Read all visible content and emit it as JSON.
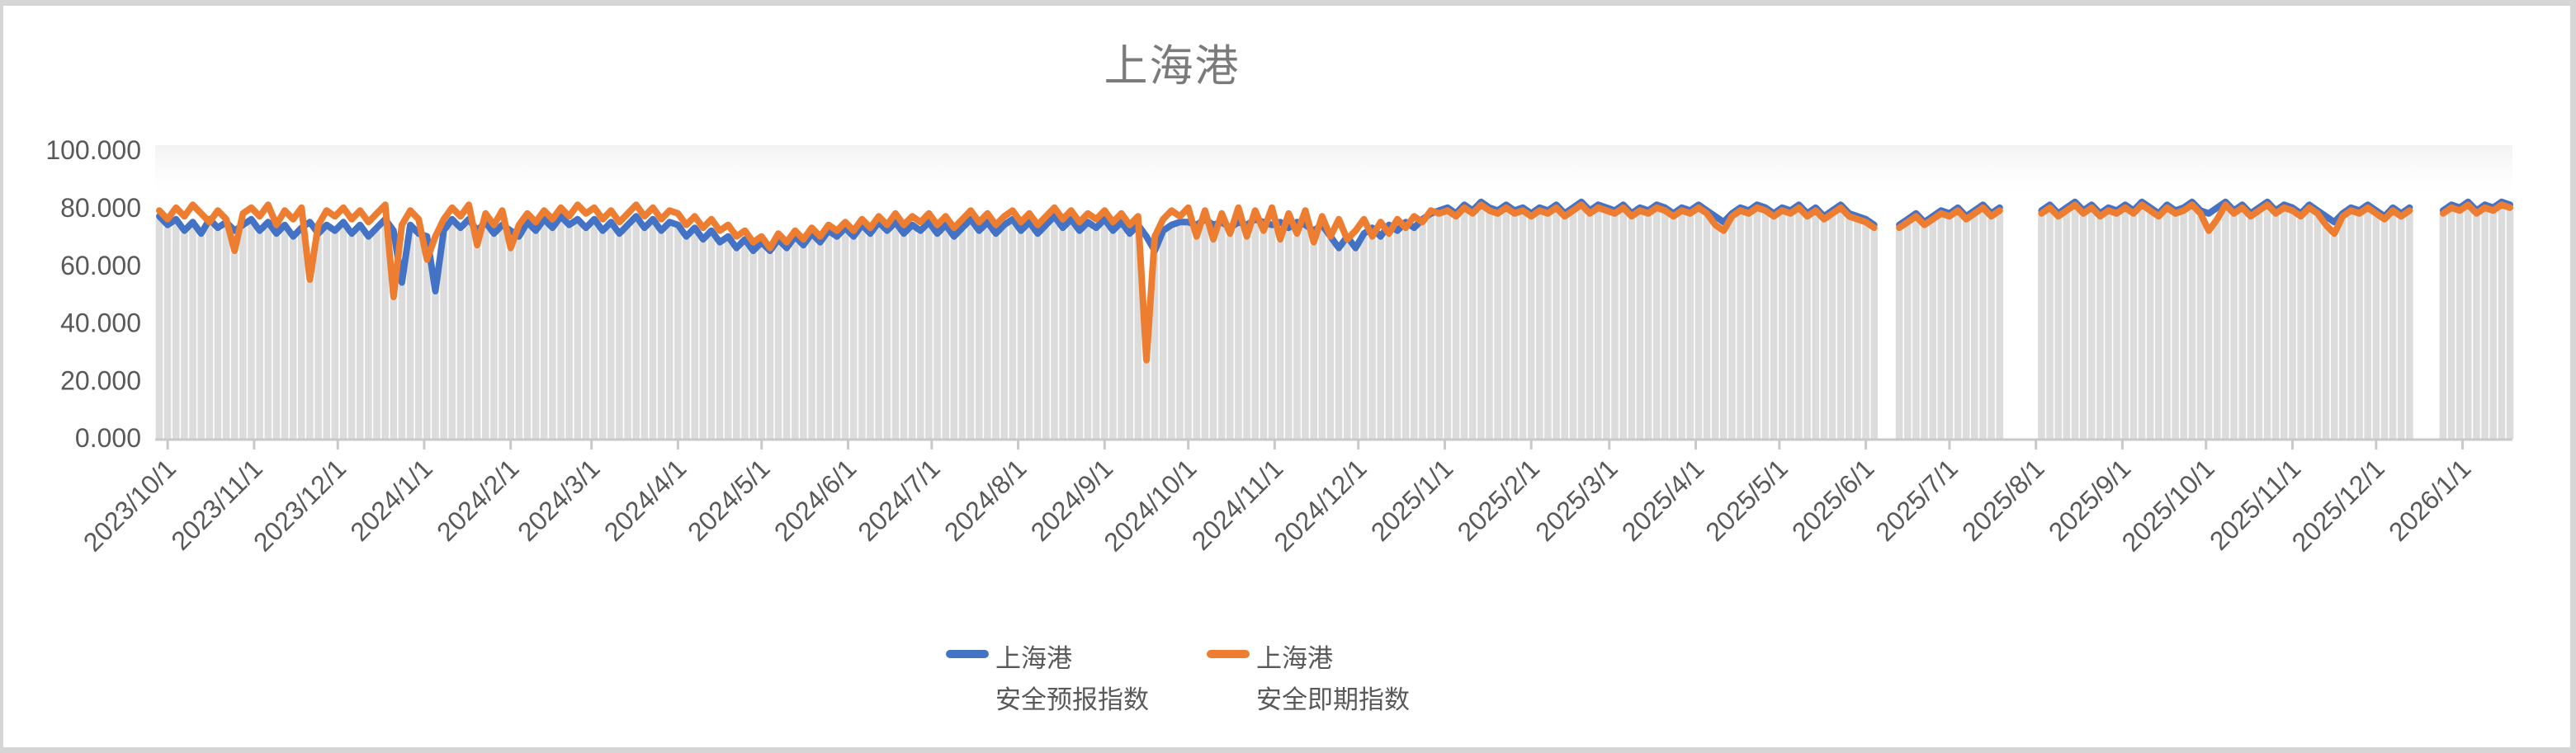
{
  "window": {
    "frame_color": "#d6d6d6",
    "background": "#ffffff"
  },
  "chart_title": "上海港",
  "legend": {
    "items": [
      {
        "line1": "上海港",
        "line2": "安全预报指数",
        "color": "#4472C4"
      },
      {
        "line1": "上海港",
        "line2": "安全即期指数",
        "color": "#ED7D31"
      }
    ]
  },
  "y_axis": {
    "tick_labels": [
      "0.000",
      "20.000",
      "40.000",
      "60.000",
      "80.000",
      "100.000"
    ],
    "tick_values": [
      0,
      20,
      40,
      60,
      80,
      100
    ]
  },
  "x_axis": {
    "tick_labels": [
      "2023/10/1",
      "2023/11/1",
      "2023/12/1",
      "2024/1/1",
      "2024/2/1",
      "2024/3/1",
      "2024/4/1",
      "2024/5/1",
      "2024/6/1",
      "2024/7/1",
      "2024/8/1",
      "2024/9/1",
      "2024/10/1",
      "2024/11/1",
      "2024/12/1",
      "2025/1/1",
      "2025/2/1",
      "2025/3/1",
      "2025/4/1",
      "2025/5/1",
      "2025/6/1",
      "2025/7/1",
      "2025/8/1",
      "2025/9/1",
      "2025/10/1",
      "2025/11/1",
      "2025/12/1",
      "2026/1/1"
    ]
  },
  "chart_data": {
    "type": "line",
    "title": "上海港",
    "xlabel": "",
    "ylabel": "",
    "x_start_date": "2023/9/28",
    "x_end_date": "2026/1/18",
    "sample_interval_days": 3,
    "ylim": [
      0,
      100
    ],
    "grid": false,
    "legend_position": "bottom",
    "background_columns_color": "#dcdcdc",
    "axis_color": "#c9c9c9",
    "label_color": "#595959",
    "notable_events": [
      "orange dip ~65 on 2023/10/25",
      "orange dip ~55 on 2023/11/22",
      "orange dip ~49 on 2023/12/21, blue dip ~54 on 2023/12/24",
      "blue dip ~51 on 2024/1/4",
      "both sag to ~65-70 late 2024/4 through 2024/5",
      "orange spike down to ~27 on 2024/9/17, blue dip ~65 after",
      "2024/10-12: blue flat ~75 while orange oscillates 68-80",
      "2025: both tight 77-82",
      "orange dip ~72 on 2025/4/11 and 2025/10/3, ~71 on 2025/11/15"
    ],
    "gaps_no_data": [
      "2025/6/7–2025/6/11",
      "2025/7/22–2025/7/31",
      "2025/12/16–2025/12/24"
    ],
    "series": [
      {
        "name": "上海港 安全预报指数",
        "color": "#4472C4",
        "values": [
          77,
          74,
          76,
          72,
          75,
          71,
          76,
          73,
          75,
          72,
          74,
          76,
          72,
          75,
          71,
          74,
          70,
          73,
          75,
          71,
          74,
          72,
          75,
          71,
          74,
          70,
          73,
          76,
          72,
          54,
          74,
          71,
          70,
          51,
          72,
          76,
          73,
          76,
          72,
          75,
          71,
          74,
          72,
          70,
          75,
          72,
          76,
          73,
          77,
          74,
          76,
          73,
          76,
          72,
          75,
          71,
          74,
          77,
          73,
          76,
          72,
          75,
          74,
          70,
          73,
          69,
          72,
          68,
          70,
          66,
          69,
          65,
          68,
          65,
          69,
          66,
          70,
          67,
          71,
          68,
          72,
          70,
          73,
          70,
          74,
          71,
          75,
          72,
          75,
          71,
          74,
          72,
          75,
          71,
          74,
          70,
          73,
          76,
          72,
          75,
          71,
          74,
          76,
          72,
          75,
          71,
          74,
          77,
          73,
          76,
          72,
          75,
          73,
          76,
          72,
          75,
          71,
          74,
          70,
          65,
          72,
          74,
          75,
          75,
          74,
          76,
          74,
          75,
          73,
          75,
          74,
          76,
          75,
          74,
          75,
          73,
          75,
          74,
          72,
          74,
          70,
          66,
          70,
          66,
          71,
          73,
          70,
          74,
          72,
          75,
          73,
          76,
          78,
          79,
          80,
          78,
          81,
          79,
          82,
          80,
          79,
          81,
          79,
          80,
          78,
          80,
          79,
          81,
          78,
          80,
          82,
          79,
          81,
          80,
          79,
          81,
          78,
          80,
          79,
          81,
          80,
          78,
          80,
          79,
          81,
          79,
          77,
          75,
          78,
          80,
          79,
          81,
          80,
          78,
          80,
          79,
          81,
          78,
          80,
          77,
          79,
          81,
          78,
          77,
          76,
          74,
          null,
          null,
          74,
          76,
          78,
          75,
          77,
          79,
          78,
          80,
          77,
          79,
          81,
          78,
          80,
          null,
          null,
          null,
          null,
          79,
          81,
          78,
          80,
          82,
          79,
          81,
          78,
          80,
          79,
          81,
          79,
          82,
          80,
          78,
          81,
          79,
          80,
          82,
          79,
          78,
          80,
          82,
          79,
          81,
          78,
          80,
          82,
          79,
          81,
          80,
          78,
          81,
          79,
          77,
          75,
          78,
          80,
          79,
          81,
          79,
          77,
          80,
          78,
          80,
          null,
          null,
          null,
          79,
          81,
          80,
          82,
          79,
          81,
          80,
          82,
          81
        ]
      },
      {
        "name": "上海港 安全即期指数",
        "color": "#ED7D31",
        "values": [
          79,
          76,
          80,
          77,
          81,
          78,
          75,
          79,
          76,
          65,
          78,
          80,
          77,
          81,
          74,
          79,
          76,
          80,
          55,
          74,
          79,
          77,
          80,
          76,
          79,
          75,
          78,
          81,
          49,
          74,
          79,
          76,
          62,
          70,
          76,
          80,
          77,
          81,
          67,
          78,
          74,
          79,
          66,
          74,
          78,
          75,
          79,
          76,
          80,
          77,
          81,
          78,
          80,
          76,
          79,
          75,
          78,
          81,
          77,
          80,
          76,
          79,
          78,
          74,
          77,
          73,
          76,
          72,
          74,
          70,
          72,
          68,
          70,
          66,
          71,
          68,
          72,
          69,
          73,
          70,
          74,
          72,
          75,
          72,
          76,
          73,
          77,
          74,
          78,
          74,
          77,
          75,
          78,
          74,
          77,
          73,
          76,
          79,
          75,
          78,
          74,
          77,
          79,
          75,
          78,
          74,
          77,
          80,
          76,
          79,
          75,
          78,
          76,
          79,
          75,
          78,
          74,
          77,
          27,
          70,
          76,
          79,
          77,
          80,
          70,
          79,
          69,
          78,
          71,
          80,
          70,
          79,
          72,
          80,
          69,
          78,
          71,
          79,
          68,
          77,
          70,
          76,
          69,
          72,
          76,
          70,
          75,
          71,
          76,
          73,
          77,
          75,
          79,
          78,
          79,
          77,
          80,
          78,
          81,
          79,
          78,
          80,
          78,
          79,
          77,
          79,
          78,
          80,
          77,
          79,
          81,
          78,
          80,
          79,
          78,
          80,
          77,
          79,
          78,
          80,
          79,
          77,
          79,
          78,
          80,
          78,
          74,
          72,
          77,
          79,
          78,
          80,
          79,
          77,
          79,
          78,
          80,
          77,
          79,
          76,
          78,
          80,
          77,
          76,
          75,
          73,
          null,
          null,
          73,
          75,
          77,
          74,
          76,
          78,
          77,
          79,
          76,
          78,
          80,
          77,
          79,
          null,
          null,
          null,
          null,
          78,
          80,
          77,
          79,
          81,
          78,
          80,
          77,
          79,
          78,
          80,
          78,
          81,
          79,
          77,
          80,
          78,
          79,
          81,
          78,
          72,
          76,
          81,
          78,
          80,
          77,
          79,
          81,
          78,
          80,
          79,
          77,
          80,
          78,
          74,
          71,
          77,
          79,
          78,
          80,
          78,
          76,
          79,
          77,
          79,
          null,
          null,
          null,
          78,
          80,
          79,
          81,
          78,
          80,
          79,
          81,
          80
        ]
      }
    ]
  }
}
